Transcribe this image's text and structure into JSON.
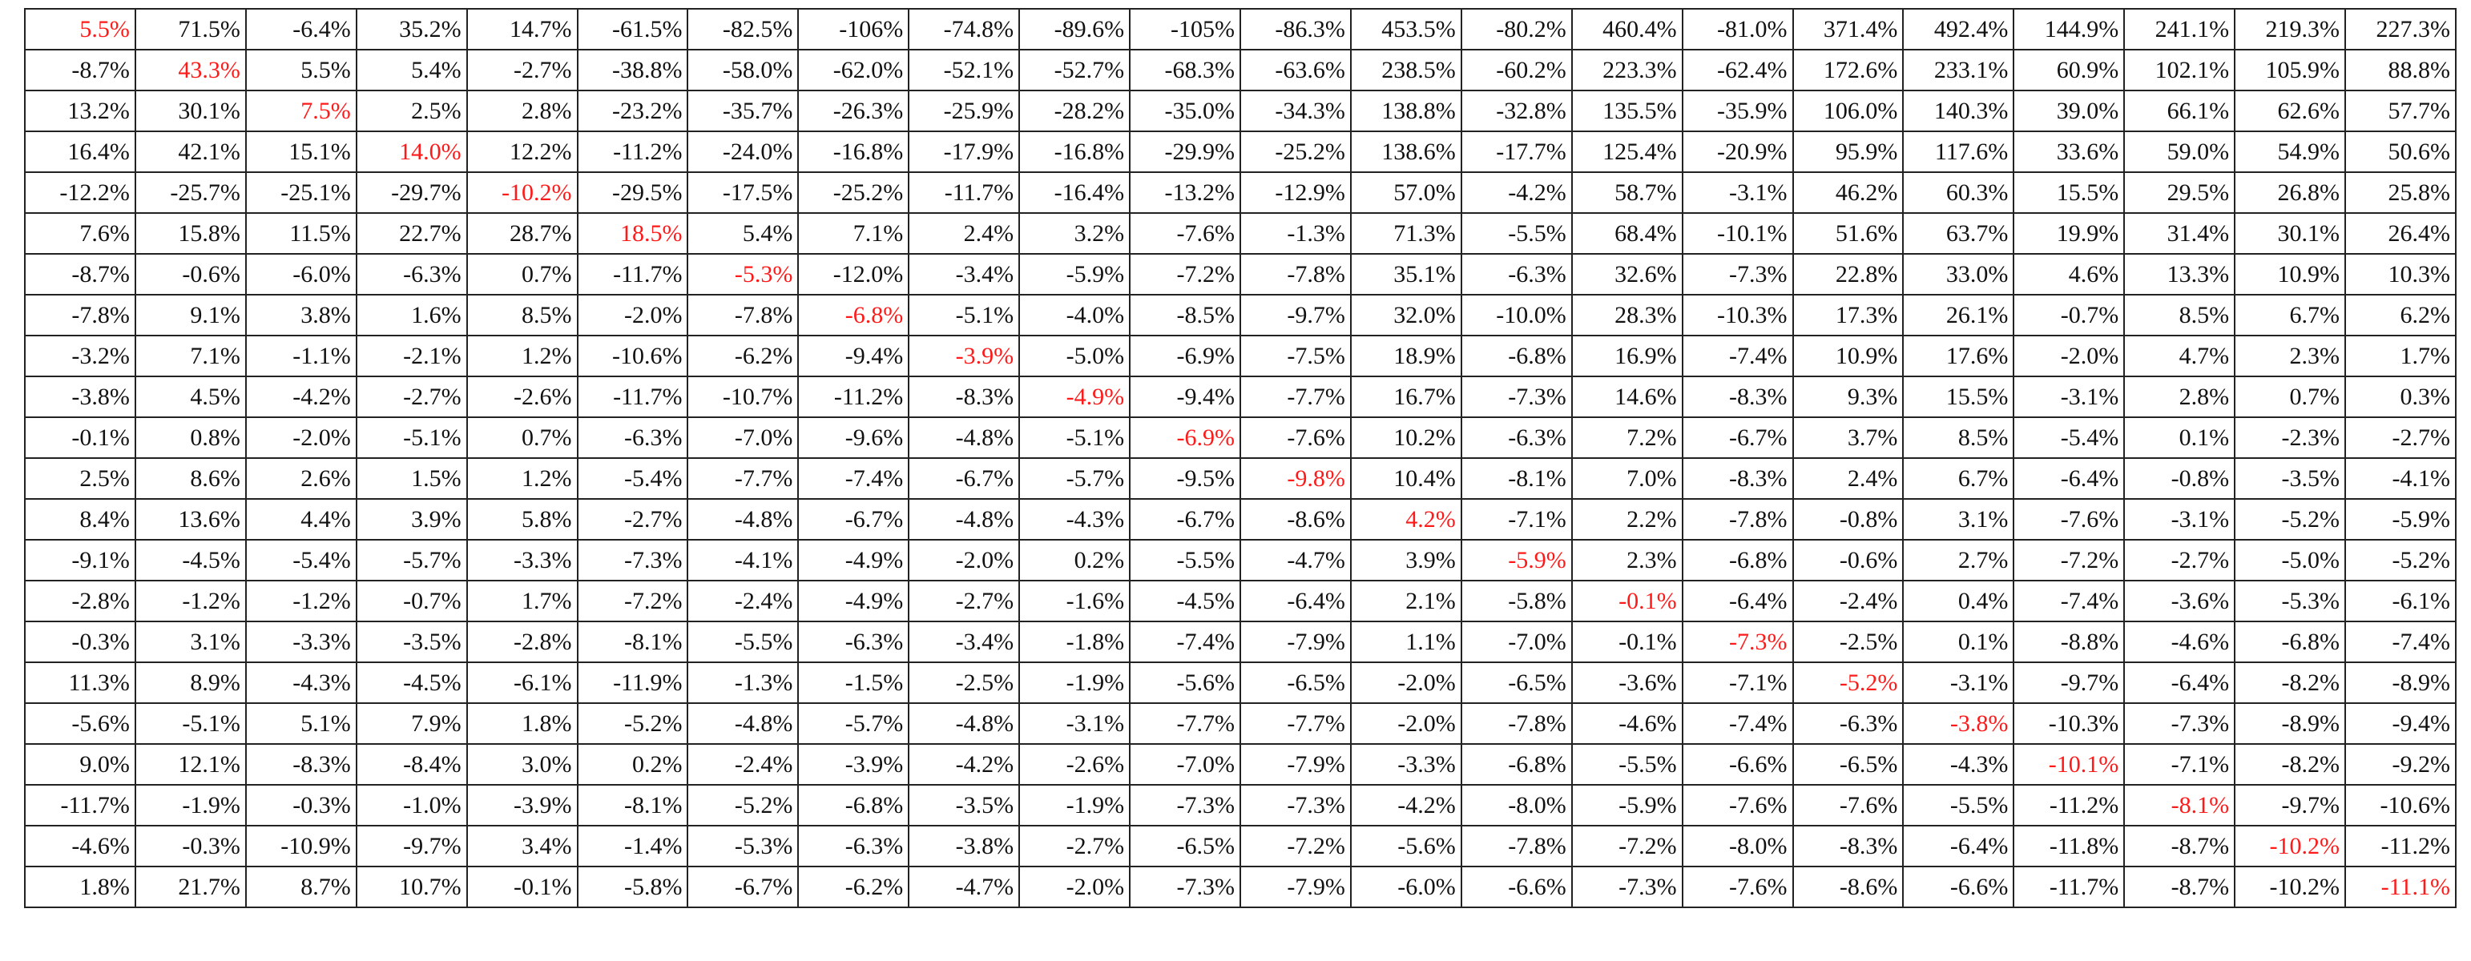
{
  "table": {
    "rows": [
      [
        "5.5%",
        "71.5%",
        "-6.4%",
        "35.2%",
        "14.7%",
        "-61.5%",
        "-82.5%",
        "-106%",
        "-74.8%",
        "-89.6%",
        "-105%",
        "-86.3%",
        "453.5%",
        "-80.2%",
        "460.4%",
        "-81.0%",
        "371.4%",
        "492.4%",
        "144.9%",
        "241.1%",
        "219.3%",
        "227.3%"
      ],
      [
        "-8.7%",
        "43.3%",
        "5.5%",
        "5.4%",
        "-2.7%",
        "-38.8%",
        "-58.0%",
        "-62.0%",
        "-52.1%",
        "-52.7%",
        "-68.3%",
        "-63.6%",
        "238.5%",
        "-60.2%",
        "223.3%",
        "-62.4%",
        "172.6%",
        "233.1%",
        "60.9%",
        "102.1%",
        "105.9%",
        "88.8%"
      ],
      [
        "13.2%",
        "30.1%",
        "7.5%",
        "2.5%",
        "2.8%",
        "-23.2%",
        "-35.7%",
        "-26.3%",
        "-25.9%",
        "-28.2%",
        "-35.0%",
        "-34.3%",
        "138.8%",
        "-32.8%",
        "135.5%",
        "-35.9%",
        "106.0%",
        "140.3%",
        "39.0%",
        "66.1%",
        "62.6%",
        "57.7%"
      ],
      [
        "16.4%",
        "42.1%",
        "15.1%",
        "14.0%",
        "12.2%",
        "-11.2%",
        "-24.0%",
        "-16.8%",
        "-17.9%",
        "-16.8%",
        "-29.9%",
        "-25.2%",
        "138.6%",
        "-17.7%",
        "125.4%",
        "-20.9%",
        "95.9%",
        "117.6%",
        "33.6%",
        "59.0%",
        "54.9%",
        "50.6%"
      ],
      [
        "-12.2%",
        "-25.7%",
        "-25.1%",
        "-29.7%",
        "-10.2%",
        "-29.5%",
        "-17.5%",
        "-25.2%",
        "-11.7%",
        "-16.4%",
        "-13.2%",
        "-12.9%",
        "57.0%",
        "-4.2%",
        "58.7%",
        "-3.1%",
        "46.2%",
        "60.3%",
        "15.5%",
        "29.5%",
        "26.8%",
        "25.8%"
      ],
      [
        "7.6%",
        "15.8%",
        "11.5%",
        "22.7%",
        "28.7%",
        "18.5%",
        "5.4%",
        "7.1%",
        "2.4%",
        "3.2%",
        "-7.6%",
        "-1.3%",
        "71.3%",
        "-5.5%",
        "68.4%",
        "-10.1%",
        "51.6%",
        "63.7%",
        "19.9%",
        "31.4%",
        "30.1%",
        "26.4%"
      ],
      [
        "-8.7%",
        "-0.6%",
        "-6.0%",
        "-6.3%",
        "0.7%",
        "-11.7%",
        "-5.3%",
        "-12.0%",
        "-3.4%",
        "-5.9%",
        "-7.2%",
        "-7.8%",
        "35.1%",
        "-6.3%",
        "32.6%",
        "-7.3%",
        "22.8%",
        "33.0%",
        "4.6%",
        "13.3%",
        "10.9%",
        "10.3%"
      ],
      [
        "-7.8%",
        "9.1%",
        "3.8%",
        "1.6%",
        "8.5%",
        "-2.0%",
        "-7.8%",
        "-6.8%",
        "-5.1%",
        "-4.0%",
        "-8.5%",
        "-9.7%",
        "32.0%",
        "-10.0%",
        "28.3%",
        "-10.3%",
        "17.3%",
        "26.1%",
        "-0.7%",
        "8.5%",
        "6.7%",
        "6.2%"
      ],
      [
        "-3.2%",
        "7.1%",
        "-1.1%",
        "-2.1%",
        "1.2%",
        "-10.6%",
        "-6.2%",
        "-9.4%",
        "-3.9%",
        "-5.0%",
        "-6.9%",
        "-7.5%",
        "18.9%",
        "-6.8%",
        "16.9%",
        "-7.4%",
        "10.9%",
        "17.6%",
        "-2.0%",
        "4.7%",
        "2.3%",
        "1.7%"
      ],
      [
        "-3.8%",
        "4.5%",
        "-4.2%",
        "-2.7%",
        "-2.6%",
        "-11.7%",
        "-10.7%",
        "-11.2%",
        "-8.3%",
        "-4.9%",
        "-9.4%",
        "-7.7%",
        "16.7%",
        "-7.3%",
        "14.6%",
        "-8.3%",
        "9.3%",
        "15.5%",
        "-3.1%",
        "2.8%",
        "0.7%",
        "0.3%"
      ],
      [
        "-0.1%",
        "0.8%",
        "-2.0%",
        "-5.1%",
        "0.7%",
        "-6.3%",
        "-7.0%",
        "-9.6%",
        "-4.8%",
        "-5.1%",
        "-6.9%",
        "-7.6%",
        "10.2%",
        "-6.3%",
        "7.2%",
        "-6.7%",
        "3.7%",
        "8.5%",
        "-5.4%",
        "0.1%",
        "-2.3%",
        "-2.7%"
      ],
      [
        "2.5%",
        "8.6%",
        "2.6%",
        "1.5%",
        "1.2%",
        "-5.4%",
        "-7.7%",
        "-7.4%",
        "-6.7%",
        "-5.7%",
        "-9.5%",
        "-9.8%",
        "10.4%",
        "-8.1%",
        "7.0%",
        "-8.3%",
        "2.4%",
        "6.7%",
        "-6.4%",
        "-0.8%",
        "-3.5%",
        "-4.1%"
      ],
      [
        "8.4%",
        "13.6%",
        "4.4%",
        "3.9%",
        "5.8%",
        "-2.7%",
        "-4.8%",
        "-6.7%",
        "-4.8%",
        "-4.3%",
        "-6.7%",
        "-8.6%",
        "4.2%",
        "-7.1%",
        "2.2%",
        "-7.8%",
        "-0.8%",
        "3.1%",
        "-7.6%",
        "-3.1%",
        "-5.2%",
        "-5.9%"
      ],
      [
        "-9.1%",
        "-4.5%",
        "-5.4%",
        "-5.7%",
        "-3.3%",
        "-7.3%",
        "-4.1%",
        "-4.9%",
        "-2.0%",
        "0.2%",
        "-5.5%",
        "-4.7%",
        "3.9%",
        "-5.9%",
        "2.3%",
        "-6.8%",
        "-0.6%",
        "2.7%",
        "-7.2%",
        "-2.7%",
        "-5.0%",
        "-5.2%"
      ],
      [
        "-2.8%",
        "-1.2%",
        "-1.2%",
        "-0.7%",
        "1.7%",
        "-7.2%",
        "-2.4%",
        "-4.9%",
        "-2.7%",
        "-1.6%",
        "-4.5%",
        "-6.4%",
        "2.1%",
        "-5.8%",
        "-0.1%",
        "-6.4%",
        "-2.4%",
        "0.4%",
        "-7.4%",
        "-3.6%",
        "-5.3%",
        "-6.1%"
      ],
      [
        "-0.3%",
        "3.1%",
        "-3.3%",
        "-3.5%",
        "-2.8%",
        "-8.1%",
        "-5.5%",
        "-6.3%",
        "-3.4%",
        "-1.8%",
        "-7.4%",
        "-7.9%",
        "1.1%",
        "-7.0%",
        "-0.1%",
        "-7.3%",
        "-2.5%",
        "0.1%",
        "-8.8%",
        "-4.6%",
        "-6.8%",
        "-7.4%"
      ],
      [
        "11.3%",
        "8.9%",
        "-4.3%",
        "-4.5%",
        "-6.1%",
        "-11.9%",
        "-1.3%",
        "-1.5%",
        "-2.5%",
        "-1.9%",
        "-5.6%",
        "-6.5%",
        "-2.0%",
        "-6.5%",
        "-3.6%",
        "-7.1%",
        "-5.2%",
        "-3.1%",
        "-9.7%",
        "-6.4%",
        "-8.2%",
        "-8.9%"
      ],
      [
        "-5.6%",
        "-5.1%",
        "5.1%",
        "7.9%",
        "1.8%",
        "-5.2%",
        "-4.8%",
        "-5.7%",
        "-4.8%",
        "-3.1%",
        "-7.7%",
        "-7.7%",
        "-2.0%",
        "-7.8%",
        "-4.6%",
        "-7.4%",
        "-6.3%",
        "-3.8%",
        "-10.3%",
        "-7.3%",
        "-8.9%",
        "-9.4%"
      ],
      [
        "9.0%",
        "12.1%",
        "-8.3%",
        "-8.4%",
        "3.0%",
        "0.2%",
        "-2.4%",
        "-3.9%",
        "-4.2%",
        "-2.6%",
        "-7.0%",
        "-7.9%",
        "-3.3%",
        "-6.8%",
        "-5.5%",
        "-6.6%",
        "-6.5%",
        "-4.3%",
        "-10.1%",
        "-7.1%",
        "-8.2%",
        "-9.2%"
      ],
      [
        "-11.7%",
        "-1.9%",
        "-0.3%",
        "-1.0%",
        "-3.9%",
        "-8.1%",
        "-5.2%",
        "-6.8%",
        "-3.5%",
        "-1.9%",
        "-7.3%",
        "-7.3%",
        "-4.2%",
        "-8.0%",
        "-5.9%",
        "-7.6%",
        "-7.6%",
        "-5.5%",
        "-11.2%",
        "-8.1%",
        "-9.7%",
        "-10.6%"
      ],
      [
        "-4.6%",
        "-0.3%",
        "-10.9%",
        "-9.7%",
        "3.4%",
        "-1.4%",
        "-5.3%",
        "-6.3%",
        "-3.8%",
        "-2.7%",
        "-6.5%",
        "-7.2%",
        "-5.6%",
        "-7.8%",
        "-7.2%",
        "-8.0%",
        "-8.3%",
        "-6.4%",
        "-11.8%",
        "-8.7%",
        "-10.2%",
        "-11.2%"
      ],
      [
        "1.8%",
        "21.7%",
        "8.7%",
        "10.7%",
        "-0.1%",
        "-5.8%",
        "-6.7%",
        "-6.2%",
        "-4.7%",
        "-2.0%",
        "-7.3%",
        "-7.9%",
        "-6.0%",
        "-6.6%",
        "-7.3%",
        "-7.6%",
        "-8.6%",
        "-6.6%",
        "-11.7%",
        "-8.7%",
        "-10.2%",
        "-11.1%"
      ]
    ]
  }
}
